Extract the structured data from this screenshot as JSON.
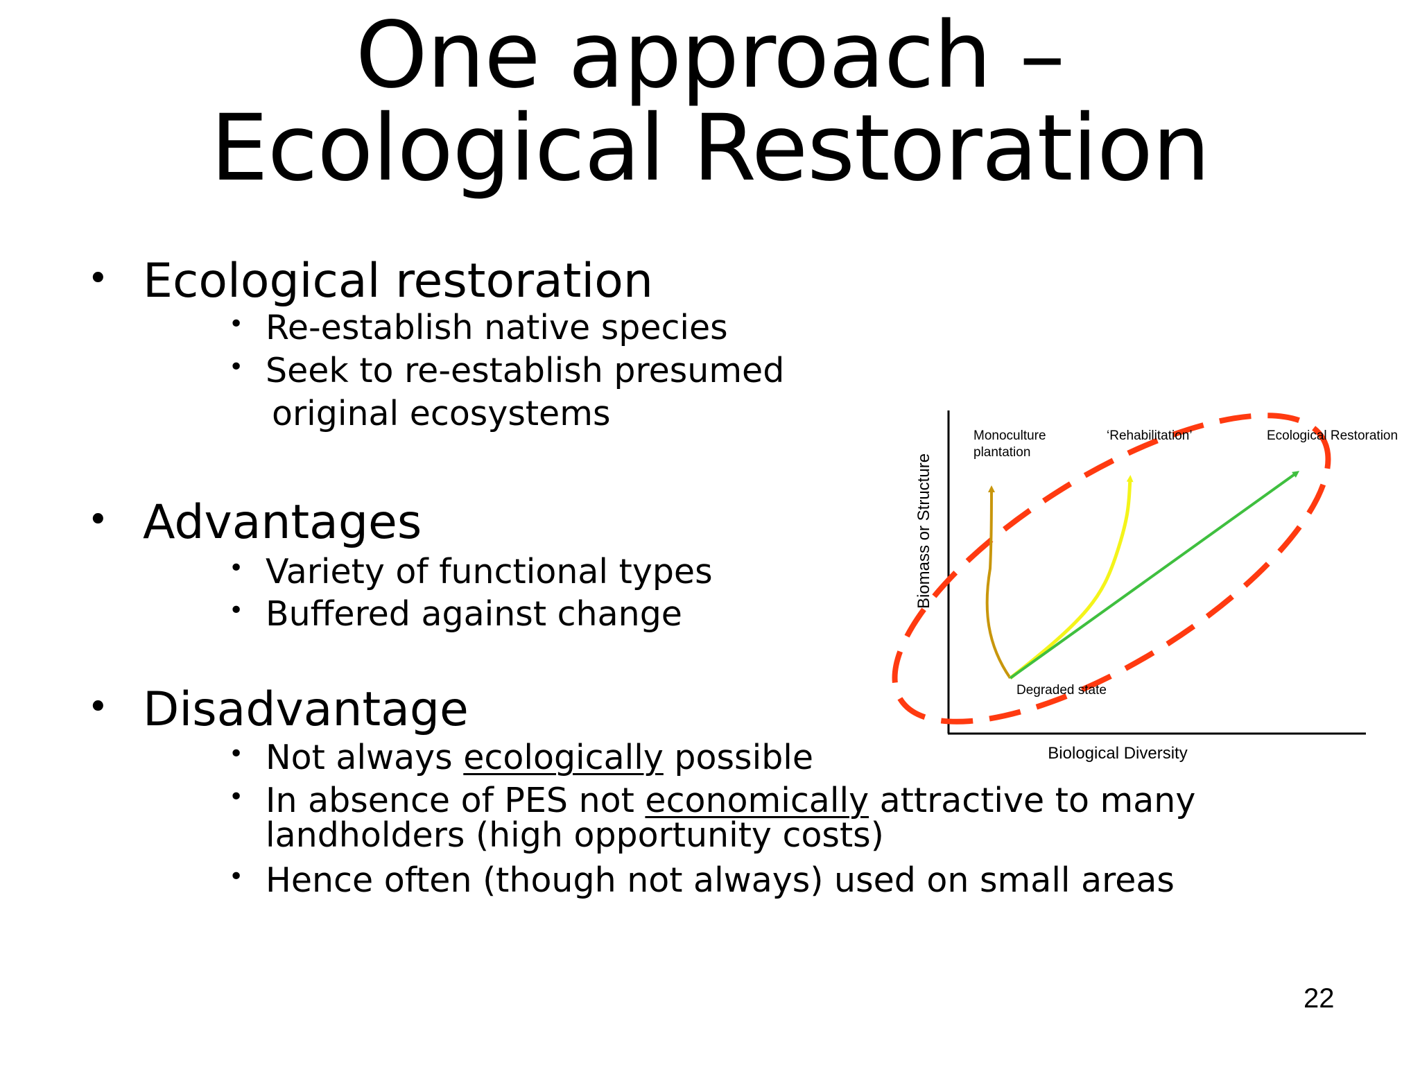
{
  "title": {
    "line1": "One approach –",
    "line2": "Ecological Restoration"
  },
  "sections": [
    {
      "heading": "Ecological restoration",
      "items": [
        "Re-establish native species",
        "Seek to re-establish presumed",
        "original ecosystems"
      ]
    },
    {
      "heading": "Advantages",
      "items": [
        "Variety of functional types",
        "Buffered against change"
      ]
    },
    {
      "heading": "Disadvantage",
      "items": [
        {
          "pre": "Not always ",
          "emph": "ecologically",
          "post": " possible"
        },
        {
          "pre": "In absence of PES not ",
          "emph": "economically",
          "post": " attractive to many",
          "line2": "landholders (high opportunity costs)"
        },
        "Hence often (though not always) used on small areas"
      ]
    }
  ],
  "diagram": {
    "ylabel": "Biomass or Structure",
    "xlabel": "Biological Diversity",
    "labels": {
      "monoculture_1": "Monoculture",
      "monoculture_2": "plantation",
      "rehabilitation": "‘Rehabilitation’",
      "ecological": "Ecological Restoration",
      "degraded": "Degraded state"
    },
    "colors": {
      "monoculture": "#c8960c",
      "rehabilitation": "#f4f41a",
      "ecological": "#3fbf3f",
      "ellipse": "#ff3a10"
    }
  },
  "slide_number": "22"
}
